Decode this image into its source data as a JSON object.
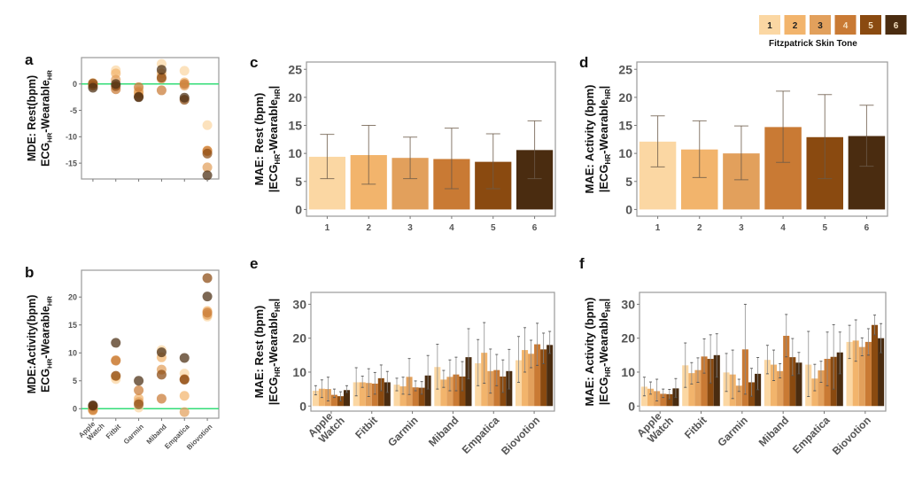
{
  "legend": {
    "title": "Fitzpatrick Skin Tone",
    "labels": [
      "1",
      "2",
      "3",
      "4",
      "5",
      "6"
    ],
    "colors": [
      "#fbd7a3",
      "#f2b46c",
      "#e2a05c",
      "#c97a34",
      "#8a4a10",
      "#4a2c10"
    ],
    "text_colors": [
      "#222222",
      "#222222",
      "#222222",
      "#f5e0c0",
      "#f5e0c0",
      "#f5e0c0"
    ]
  },
  "reference_line_color": "#33dd77",
  "chart_data": [
    {
      "id": "a",
      "type": "scatter",
      "panel_label": "a",
      "ylabel_line1": "MDE: Rest(bpm)",
      "ylabel_line2_main": "ECG",
      "ylabel_line2_sub1": "HR",
      "ylabel_line2_mid": "-Wearable",
      "ylabel_line2_sub2": "HR",
      "ylim": [
        -18,
        5
      ],
      "yticks": [
        0,
        -5,
        -10,
        -15
      ],
      "ytick_labels": [
        "0",
        "-5",
        "-10",
        "-15"
      ],
      "categories": [
        "Apple Watch",
        "Fitbit",
        "Garmin",
        "Miband",
        "Empatica",
        "Biovotion"
      ],
      "show_x_labels": false,
      "hline": 0,
      "series": [
        {
          "name": "1",
          "values": [
            0.2,
            2.6,
            -1.2,
            3.8,
            2.5,
            -7.8
          ]
        },
        {
          "name": "2",
          "values": [
            -0.2,
            2.0,
            -1.8,
            2.0,
            0.3,
            -12.6
          ]
        },
        {
          "name": "3",
          "values": [
            0.0,
            0.8,
            -1.5,
            1.0,
            -0.3,
            -15.8
          ]
        },
        {
          "name": "4",
          "values": [
            -0.3,
            -1.0,
            -0.6,
            -1.2,
            0.0,
            -12.7
          ]
        },
        {
          "name": "5",
          "values": [
            0.1,
            -0.4,
            -2.4,
            1.2,
            -3.0,
            -13.2
          ]
        },
        {
          "name": "6",
          "values": [
            -0.7,
            0.0,
            -2.5,
            2.7,
            -2.6,
            -17.3
          ]
        }
      ]
    },
    {
      "id": "b",
      "type": "scatter",
      "panel_label": "b",
      "ylabel_line1": "MDE:Activity(bpm)",
      "ylabel_line2_main": "ECG",
      "ylabel_line2_sub1": "HR",
      "ylabel_line2_mid": "-Wearable",
      "ylabel_line2_sub2": "HR",
      "ylim": [
        -1.7,
        24.8
      ],
      "yticks": [
        0,
        5,
        10,
        15,
        20
      ],
      "ytick_labels": [
        "0",
        "5",
        "10",
        "15",
        "20"
      ],
      "categories": [
        "Apple Watch",
        "Fitbit",
        "Garmin",
        "Miband",
        "Empatica",
        "Biovotion"
      ],
      "category_lines": [
        [
          "Apple",
          "Watch"
        ],
        [
          "Fitbit"
        ],
        [
          "Garmin"
        ],
        [
          "Miband"
        ],
        [
          "Empatica"
        ],
        [
          "Biovotion"
        ]
      ],
      "show_x_labels": true,
      "hline": 0,
      "series": [
        {
          "name": "1",
          "values": [
            0.0,
            5.3,
            0.2,
            10.5,
            6.3,
            16.5
          ]
        },
        {
          "name": "2",
          "values": [
            -0.3,
            5.8,
            1.8,
            9.2,
            2.3,
            17.5
          ]
        },
        {
          "name": "3",
          "values": [
            0.3,
            8.7,
            1.2,
            7.0,
            -0.6,
            16.8
          ]
        },
        {
          "name": "4",
          "values": [
            -0.2,
            8.6,
            3.3,
            1.8,
            5.3,
            17.2
          ]
        },
        {
          "name": "5",
          "values": [
            0.5,
            5.9,
            0.8,
            6.1,
            5.2,
            23.4
          ]
        },
        {
          "name": "6",
          "values": [
            0.6,
            11.8,
            5.0,
            10.1,
            9.1,
            20.1
          ]
        }
      ]
    },
    {
      "id": "c",
      "type": "bar",
      "panel_label": "c",
      "ylabel_line1": "MAE: Rest (bpm)",
      "ylabel_line2_main": "|ECG",
      "ylabel_line2_sub1": "HR",
      "ylabel_line2_mid": "-Wearable",
      "ylabel_line2_sub2": "HR",
      "ylabel_line2_end": "|",
      "ylim": [
        -1.2,
        26.3
      ],
      "yticks": [
        0,
        5,
        10,
        15,
        20,
        25
      ],
      "ytick_labels": [
        "0",
        "5",
        "10",
        "15",
        "20",
        "25"
      ],
      "categories": [
        "1",
        "2",
        "3",
        "4",
        "5",
        "6"
      ],
      "values": [
        9.4,
        9.7,
        9.2,
        9.0,
        8.5,
        10.6
      ],
      "err_low": [
        5.5,
        4.5,
        5.5,
        3.7,
        3.7,
        5.5
      ],
      "err_high": [
        13.4,
        15.0,
        12.9,
        14.5,
        13.5,
        15.8
      ]
    },
    {
      "id": "d",
      "type": "bar",
      "panel_label": "d",
      "ylabel_line1": "MAE: Activity (bpm)",
      "ylabel_line2_main": "|ECG",
      "ylabel_line2_sub1": "HR",
      "ylabel_line2_mid": "-Wearable",
      "ylabel_line2_sub2": "HR",
      "ylabel_line2_end": "|",
      "ylim": [
        -1.2,
        26.3
      ],
      "yticks": [
        0,
        5,
        10,
        15,
        20,
        25
      ],
      "ytick_labels": [
        "0",
        "5",
        "10",
        "15",
        "20",
        "25"
      ],
      "categories": [
        "1",
        "2",
        "3",
        "4",
        "5",
        "6"
      ],
      "values": [
        12.1,
        10.7,
        10.0,
        14.7,
        12.9,
        13.1
      ],
      "err_low": [
        7.6,
        5.7,
        5.3,
        8.4,
        5.5,
        7.7
      ],
      "err_high": [
        16.7,
        15.8,
        14.9,
        21.1,
        20.5,
        18.6
      ]
    },
    {
      "id": "e",
      "type": "grouped-bar",
      "panel_label": "e",
      "ylabel_line1": "MAE: Rest (bpm)",
      "ylabel_line2_main": "|ECG",
      "ylabel_line2_sub1": "HR",
      "ylabel_line2_mid": "-Wearable",
      "ylabel_line2_sub2": "HR",
      "ylabel_line2_end": "|",
      "ylim": [
        -1.5,
        33.5
      ],
      "yticks": [
        0,
        10,
        20,
        30
      ],
      "ytick_labels": [
        "0",
        "10",
        "20",
        "30"
      ],
      "categories": [
        "Apple Watch",
        "Fitbit",
        "Garmin",
        "Miband",
        "Empatica",
        "Biovotion"
      ],
      "category_lines": [
        [
          "Apple",
          "Watch"
        ],
        [
          "Fitbit"
        ],
        [
          "Garmin"
        ],
        [
          "Miband"
        ],
        [
          "Empatica"
        ],
        [
          "Biovotion"
        ]
      ],
      "series": [
        {
          "name": "1",
          "values": [
            4.5,
            7.0,
            6.3,
            11.5,
            12.6,
            13.5
          ],
          "err_low": [
            3.3,
            3.0,
            4.5,
            5.0,
            6.0,
            7.0
          ],
          "err_high": [
            6.0,
            11.3,
            8.2,
            18.2,
            19.6,
            20.5
          ]
        },
        {
          "name": "2",
          "values": [
            5.1,
            7.0,
            5.8,
            7.8,
            15.7,
            16.5
          ],
          "err_low": [
            2.5,
            5.5,
            3.5,
            5.5,
            6.7,
            10.0
          ],
          "err_high": [
            7.7,
            8.8,
            8.5,
            10.5,
            24.6,
            23.1
          ]
        },
        {
          "name": "3",
          "values": [
            5.0,
            6.8,
            8.6,
            8.6,
            10.3,
            15.4
          ],
          "err_low": [
            1.5,
            2.8,
            3.4,
            4.5,
            3.8,
            11.3
          ],
          "err_high": [
            8.5,
            11.0,
            14.0,
            13.6,
            16.8,
            19.4
          ]
        },
        {
          "name": "4",
          "values": [
            3.3,
            6.6,
            5.5,
            9.3,
            10.6,
            18.2
          ],
          "err_low": [
            2.5,
            3.5,
            4.5,
            4.5,
            6.0,
            12.0
          ],
          "err_high": [
            5.0,
            9.9,
            7.4,
            14.4,
            15.2,
            24.4
          ]
        },
        {
          "name": "5",
          "values": [
            2.9,
            8.2,
            5.4,
            8.7,
            8.7,
            16.7
          ],
          "err_low": [
            1.5,
            4.5,
            3.5,
            4.5,
            4.0,
            12.5
          ],
          "err_high": [
            4.2,
            12.1,
            7.2,
            13.1,
            13.6,
            21.5
          ]
        },
        {
          "name": "6",
          "values": [
            4.7,
            7.0,
            9.0,
            14.4,
            10.3,
            18.0
          ],
          "err_low": [
            4.0,
            4.0,
            5.0,
            8.0,
            5.0,
            15.5
          ],
          "err_high": [
            6.0,
            10.2,
            14.9,
            22.8,
            16.7,
            22.0
          ]
        }
      ]
    },
    {
      "id": "f",
      "type": "grouped-bar",
      "panel_label": "f",
      "ylabel_line1": "MAE: Activity (bpm)",
      "ylabel_line2_main": "|ECG",
      "ylabel_line2_sub1": "HR",
      "ylabel_line2_mid": "-Wearable",
      "ylabel_line2_sub2": "HR",
      "ylabel_line2_end": "|",
      "ylim": [
        -1.5,
        33.5
      ],
      "yticks": [
        0,
        10,
        20,
        30
      ],
      "ytick_labels": [
        "0",
        "10",
        "20",
        "30"
      ],
      "categories": [
        "Apple Watch",
        "Fitbit",
        "Garmin",
        "Miband",
        "Empatica",
        "Biovotion"
      ],
      "category_lines": [
        [
          "Apple",
          "Watch"
        ],
        [
          "Fitbit"
        ],
        [
          "Garmin"
        ],
        [
          "Miband"
        ],
        [
          "Empatica"
        ],
        [
          "Biovotion"
        ]
      ],
      "series": [
        {
          "name": "1",
          "values": [
            5.7,
            12.0,
            9.9,
            13.6,
            12.2,
            18.9
          ],
          "err_low": [
            3.0,
            5.5,
            4.3,
            9.5,
            2.8,
            14.0
          ],
          "err_high": [
            8.5,
            18.6,
            15.5,
            17.9,
            22.0,
            23.8
          ]
        },
        {
          "name": "2",
          "values": [
            5.1,
            9.7,
            9.3,
            12.2,
            8.1,
            19.3
          ],
          "err_low": [
            3.5,
            6.5,
            2.2,
            7.5,
            4.5,
            13.2
          ],
          "err_high": [
            7.1,
            12.8,
            16.5,
            16.5,
            12.3,
            25.4
          ]
        },
        {
          "name": "3",
          "values": [
            4.4,
            10.6,
            6.0,
            10.3,
            10.5,
            17.4
          ],
          "err_low": [
            1.5,
            7.0,
            4.3,
            8.3,
            7.0,
            14.8
          ],
          "err_high": [
            7.9,
            14.2,
            7.9,
            12.5,
            13.2,
            20.1
          ]
        },
        {
          "name": "4",
          "values": [
            3.6,
            14.6,
            16.7,
            20.7,
            13.9,
            18.9
          ],
          "err_low": [
            2.5,
            9.7,
            3.5,
            14.5,
            6.0,
            15.0
          ],
          "err_high": [
            5.0,
            19.8,
            30.0,
            27.0,
            21.8,
            22.8
          ]
        },
        {
          "name": "5",
          "values": [
            3.5,
            13.9,
            7.0,
            14.4,
            14.5,
            23.9
          ],
          "err_low": [
            2.0,
            6.8,
            2.9,
            9.0,
            5.0,
            21.0
          ],
          "err_high": [
            4.9,
            21.0,
            11.1,
            19.9,
            24.0,
            26.8
          ]
        },
        {
          "name": "6",
          "values": [
            5.2,
            15.0,
            9.5,
            12.8,
            15.8,
            20.0
          ],
          "err_low": [
            2.5,
            8.5,
            4.8,
            9.5,
            9.5,
            15.7
          ],
          "err_high": [
            8.1,
            21.3,
            14.3,
            15.8,
            21.8,
            24.3
          ]
        }
      ]
    }
  ]
}
